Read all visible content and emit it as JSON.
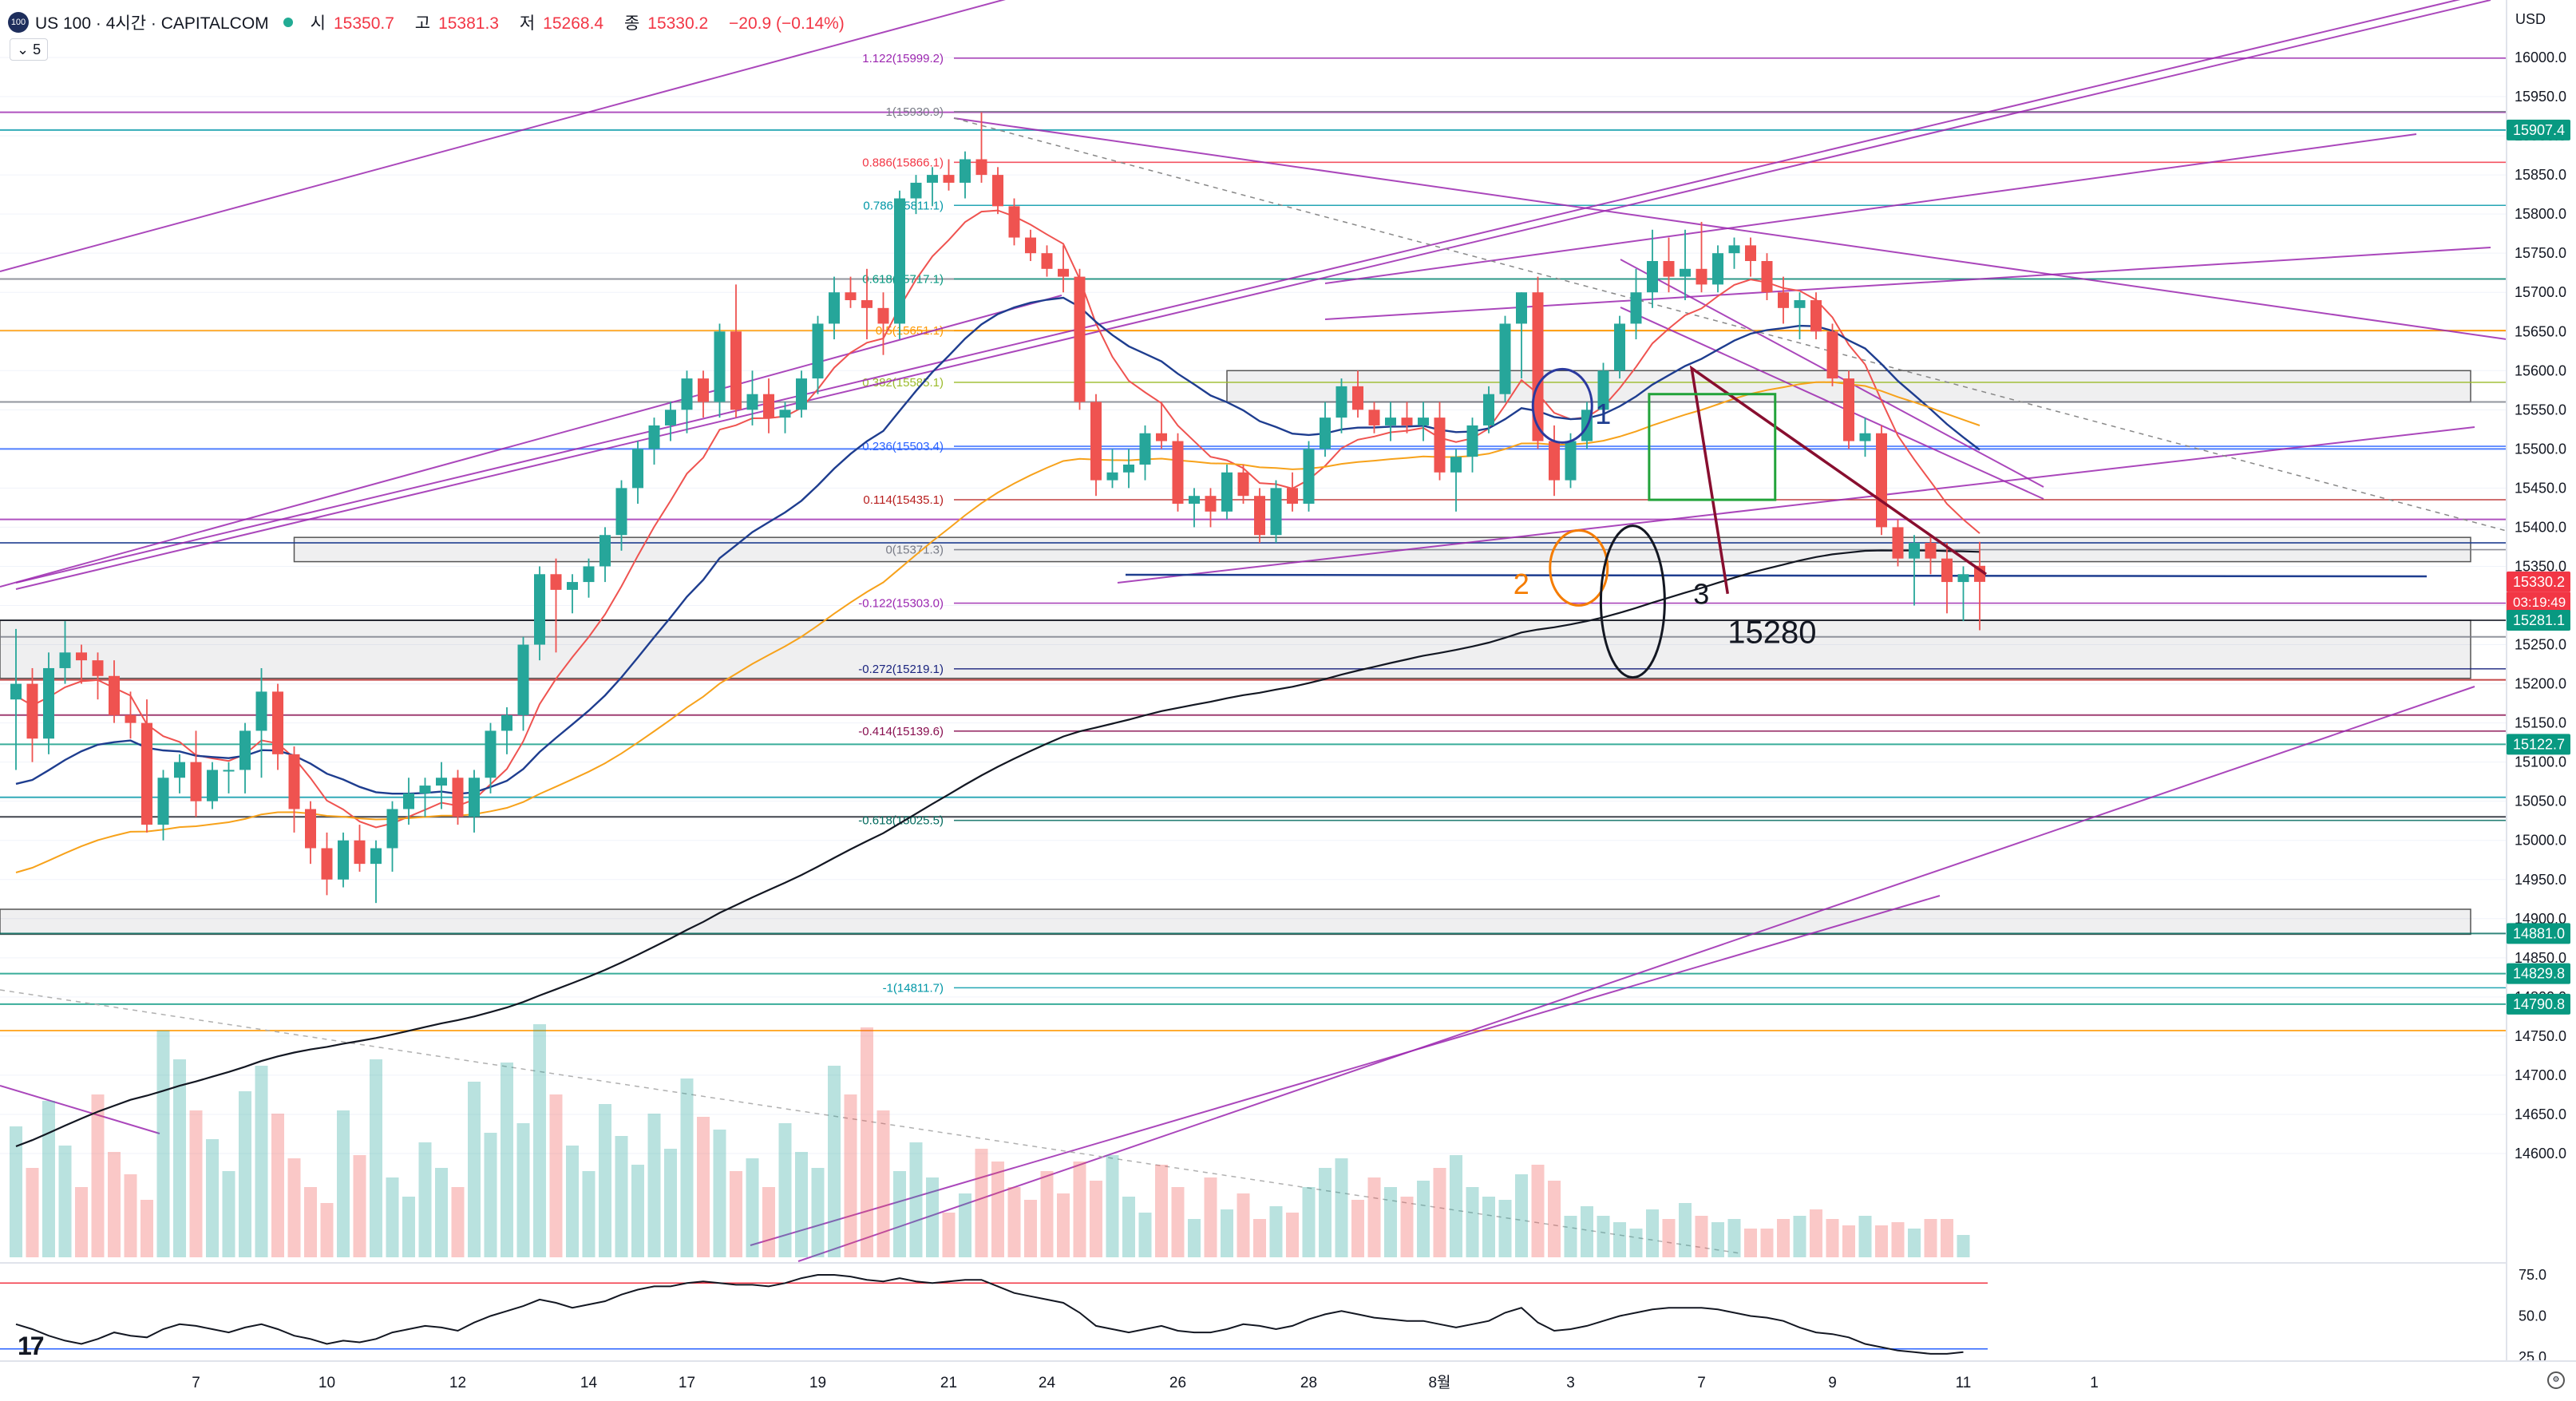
{
  "header": {
    "symbol": "US 100 · 4시간 · CAPITALCOM",
    "logo_text": "100",
    "open_label": "시",
    "open_value": "15350.7",
    "high_label": "고",
    "high_value": "15381.3",
    "low_label": "저",
    "low_value": "15268.4",
    "close_label": "종",
    "close_value": "15330.2",
    "change": "−20.9 (−0.14%)",
    "interval_toggle": "⌄ 5",
    "currency": "USD"
  },
  "colors": {
    "up": "#26a69a",
    "down": "#ef5350",
    "ema_red": "#ef5350",
    "ema_blue": "#1e3d8f",
    "ema_orange": "#f7a21b",
    "ema_black": "#131722",
    "channel": "#9c27b0",
    "target_box": "#22a33a",
    "projection": "#880e2f"
  },
  "chart_data": {
    "type": "candlestick",
    "title": "",
    "price_axis": {
      "ticks": [
        "16000.0",
        "15950.0",
        "15900.0",
        "15850.0",
        "15800.0",
        "15750.0",
        "15700.0",
        "15650.0",
        "15600.0",
        "15550.0",
        "15500.0",
        "15450.0",
        "15400.0",
        "15350.0",
        "15300.0",
        "15250.0",
        "15200.0",
        "15150.0",
        "15100.0",
        "15050.0",
        "15000.0",
        "14950.0",
        "14900.0",
        "14850.0",
        "14800.0",
        "14750.0",
        "14700.0",
        "14650.0",
        "14600.0"
      ],
      "range": [
        14580,
        16030
      ]
    },
    "time_axis": {
      "labels": [
        "7",
        "10",
        "12",
        "14",
        "17",
        "19",
        "21",
        "24",
        "26",
        "28",
        "8월",
        "3",
        "7",
        "9",
        "11",
        "1"
      ],
      "label_bars": [
        11,
        19,
        27,
        35,
        41,
        49,
        57,
        63,
        71,
        79,
        87,
        95,
        103,
        111,
        119,
        127
      ]
    },
    "price_badges": [
      {
        "value": 15907.4,
        "text": "15907.4",
        "color": "#089981"
      },
      {
        "value": 15330.2,
        "text": "15330.2",
        "color": "#f23645"
      },
      {
        "value": 15281.1,
        "text": "15281.1",
        "color": "#089981"
      },
      {
        "value": 15122.7,
        "text": "15122.7",
        "color": "#089981"
      },
      {
        "value": 14881.0,
        "text": "14881.0",
        "color": "#089981"
      },
      {
        "value": 14829.8,
        "text": "14829.8",
        "color": "#089981"
      },
      {
        "value": 14790.8,
        "text": "14790.8",
        "color": "#089981"
      }
    ],
    "countdown": "03:19:49",
    "fib_levels": [
      {
        "ratio": "1.122",
        "price": 15999.2,
        "color": "#9c27b0"
      },
      {
        "ratio": "1",
        "price": 15930.9,
        "color": "#787b86"
      },
      {
        "ratio": "0.886",
        "price": 15866.1,
        "color": "#f23645"
      },
      {
        "ratio": "0.786",
        "price": 15811.1,
        "color": "#0097a7"
      },
      {
        "ratio": "0.618",
        "price": 15717.1,
        "color": "#089981"
      },
      {
        "ratio": "0.5",
        "price": 15651.1,
        "color": "#ff9800"
      },
      {
        "ratio": "0.382",
        "price": 15585.1,
        "color": "#9bbb2a"
      },
      {
        "ratio": "0.236",
        "price": 15503.4,
        "color": "#2962ff"
      },
      {
        "ratio": "0.114",
        "price": 15435.1,
        "color": "#b71c1c"
      },
      {
        "ratio": "0",
        "price": 15371.3,
        "color": "#787b86"
      },
      {
        "ratio": "-0.122",
        "price": 15303.0,
        "color": "#9c27b0"
      },
      {
        "ratio": "-0.272",
        "price": 15219.1,
        "color": "#1a237e"
      },
      {
        "ratio": "-0.414",
        "price": 15139.6,
        "color": "#880e4f"
      },
      {
        "ratio": "-0.618",
        "price": 15025.5,
        "color": "#00695c"
      },
      {
        "ratio": "-1",
        "price": 14811.7,
        "color": "#0097a7"
      }
    ],
    "horizontal_lines": [
      15907.4,
      15930.0,
      15717.1,
      15651.1,
      15560.0,
      15500.0,
      15410.0,
      15380.0,
      15281.1,
      15260.0,
      15205.0,
      15160.0,
      15122.7,
      15055.0,
      15030.0,
      14881.0,
      14829.8,
      14790.8,
      14757.0
    ],
    "zones": [
      {
        "from_bar": 74,
        "to_bar": 150,
        "low": 15560,
        "high": 15600
      },
      {
        "from_bar": 17,
        "to_bar": 150,
        "low": 15356,
        "high": 15387
      },
      {
        "from_bar": -2,
        "to_bar": 150,
        "low": 15207,
        "high": 15281
      },
      {
        "from_bar": -2,
        "to_bar": 150,
        "low": 14880,
        "high": 14912
      }
    ],
    "annotations": [
      {
        "text": "1",
        "color": "#1e3d8f",
        "bar": 96.5,
        "price": 15532
      },
      {
        "text": "2",
        "color": "#f57c00",
        "bar": 91.5,
        "price": 15315
      },
      {
        "text": "3",
        "color": "#131722",
        "bar": 102.5,
        "price": 15302
      },
      {
        "text": "15280",
        "color": "#131722",
        "bar": 104.6,
        "price": 15252
      }
    ],
    "candles": [
      [
        15180,
        15270,
        15090,
        15200
      ],
      [
        15200,
        15220,
        15100,
        15130
      ],
      [
        15130,
        15240,
        15110,
        15220
      ],
      [
        15220,
        15280,
        15200,
        15240
      ],
      [
        15240,
        15250,
        15200,
        15230
      ],
      [
        15230,
        15240,
        15180,
        15210
      ],
      [
        15210,
        15230,
        15150,
        15160
      ],
      [
        15160,
        15190,
        15130,
        15150
      ],
      [
        15150,
        15180,
        15010,
        15020
      ],
      [
        15020,
        15090,
        15000,
        15080
      ],
      [
        15080,
        15110,
        15060,
        15100
      ],
      [
        15100,
        15140,
        15030,
        15050
      ],
      [
        15050,
        15100,
        15040,
        15090
      ],
      [
        15090,
        15100,
        15060,
        15090
      ],
      [
        15090,
        15150,
        15060,
        15140
      ],
      [
        15140,
        15220,
        15080,
        15190
      ],
      [
        15190,
        15200,
        15090,
        15110
      ],
      [
        15110,
        15120,
        15010,
        15040
      ],
      [
        15040,
        15050,
        14970,
        14990
      ],
      [
        14990,
        15010,
        14930,
        14950
      ],
      [
        14950,
        15010,
        14940,
        15000
      ],
      [
        15000,
        15020,
        14960,
        14970
      ],
      [
        14970,
        15000,
        14920,
        14990
      ],
      [
        14990,
        15050,
        14960,
        15040
      ],
      [
        15040,
        15080,
        15020,
        15060
      ],
      [
        15060,
        15080,
        15030,
        15070
      ],
      [
        15070,
        15100,
        15040,
        15080
      ],
      [
        15080,
        15090,
        15020,
        15030
      ],
      [
        15030,
        15090,
        15010,
        15080
      ],
      [
        15080,
        15150,
        15060,
        15140
      ],
      [
        15140,
        15170,
        15110,
        15160
      ],
      [
        15160,
        15260,
        15140,
        15250
      ],
      [
        15250,
        15350,
        15230,
        15340
      ],
      [
        15340,
        15360,
        15240,
        15320
      ],
      [
        15320,
        15340,
        15290,
        15330
      ],
      [
        15330,
        15360,
        15310,
        15350
      ],
      [
        15350,
        15400,
        15330,
        15390
      ],
      [
        15390,
        15460,
        15370,
        15450
      ],
      [
        15450,
        15510,
        15430,
        15500
      ],
      [
        15500,
        15540,
        15480,
        15530
      ],
      [
        15530,
        15560,
        15510,
        15550
      ],
      [
        15550,
        15600,
        15520,
        15590
      ],
      [
        15590,
        15600,
        15540,
        15560
      ],
      [
        15560,
        15660,
        15540,
        15650
      ],
      [
        15650,
        15710,
        15540,
        15550
      ],
      [
        15550,
        15600,
        15530,
        15570
      ],
      [
        15570,
        15590,
        15520,
        15540
      ],
      [
        15540,
        15560,
        15520,
        15550
      ],
      [
        15550,
        15600,
        15540,
        15590
      ],
      [
        15590,
        15670,
        15570,
        15660
      ],
      [
        15660,
        15720,
        15640,
        15700
      ],
      [
        15700,
        15720,
        15680,
        15690
      ],
      [
        15690,
        15730,
        15640,
        15680
      ],
      [
        15680,
        15700,
        15620,
        15660
      ],
      [
        15660,
        15830,
        15640,
        15820
      ],
      [
        15820,
        15850,
        15800,
        15840
      ],
      [
        15840,
        15860,
        15810,
        15850
      ],
      [
        15850,
        15870,
        15830,
        15840
      ],
      [
        15840,
        15880,
        15820,
        15870
      ],
      [
        15870,
        15930,
        15840,
        15850
      ],
      [
        15850,
        15860,
        15800,
        15810
      ],
      [
        15810,
        15820,
        15760,
        15770
      ],
      [
        15770,
        15780,
        15740,
        15750
      ],
      [
        15750,
        15760,
        15720,
        15730
      ],
      [
        15730,
        15760,
        15700,
        15720
      ],
      [
        15720,
        15730,
        15550,
        15560
      ],
      [
        15560,
        15570,
        15440,
        15460
      ],
      [
        15460,
        15500,
        15450,
        15470
      ],
      [
        15470,
        15500,
        15450,
        15480
      ],
      [
        15480,
        15530,
        15460,
        15520
      ],
      [
        15520,
        15560,
        15500,
        15510
      ],
      [
        15510,
        15520,
        15420,
        15430
      ],
      [
        15430,
        15450,
        15400,
        15440
      ],
      [
        15440,
        15450,
        15400,
        15420
      ],
      [
        15420,
        15480,
        15410,
        15470
      ],
      [
        15470,
        15480,
        15430,
        15440
      ],
      [
        15440,
        15450,
        15380,
        15390
      ],
      [
        15390,
        15460,
        15380,
        15450
      ],
      [
        15450,
        15470,
        15420,
        15430
      ],
      [
        15430,
        15510,
        15420,
        15500
      ],
      [
        15500,
        15560,
        15490,
        15540
      ],
      [
        15540,
        15590,
        15520,
        15580
      ],
      [
        15580,
        15600,
        15540,
        15550
      ],
      [
        15550,
        15560,
        15520,
        15530
      ],
      [
        15530,
        15560,
        15510,
        15540
      ],
      [
        15540,
        15560,
        15520,
        15530
      ],
      [
        15530,
        15560,
        15510,
        15540
      ],
      [
        15540,
        15560,
        15460,
        15470
      ],
      [
        15470,
        15500,
        15420,
        15490
      ],
      [
        15490,
        15540,
        15470,
        15530
      ],
      [
        15530,
        15580,
        15520,
        15570
      ],
      [
        15570,
        15670,
        15560,
        15660
      ],
      [
        15660,
        15700,
        15590,
        15700
      ],
      [
        15700,
        15720,
        15500,
        15510
      ],
      [
        15510,
        15530,
        15440,
        15460
      ],
      [
        15460,
        15520,
        15450,
        15510
      ],
      [
        15510,
        15560,
        15500,
        15550
      ],
      [
        15550,
        15610,
        15540,
        15600
      ],
      [
        15600,
        15670,
        15590,
        15660
      ],
      [
        15660,
        15730,
        15640,
        15700
      ],
      [
        15700,
        15780,
        15680,
        15740
      ],
      [
        15740,
        15770,
        15700,
        15720
      ],
      [
        15720,
        15780,
        15690,
        15730
      ],
      [
        15730,
        15790,
        15700,
        15710
      ],
      [
        15710,
        15760,
        15700,
        15750
      ],
      [
        15750,
        15770,
        15730,
        15760
      ],
      [
        15760,
        15770,
        15720,
        15740
      ],
      [
        15740,
        15750,
        15690,
        15700
      ],
      [
        15700,
        15720,
        15660,
        15680
      ],
      [
        15680,
        15700,
        15640,
        15690
      ],
      [
        15690,
        15700,
        15640,
        15650
      ],
      [
        15650,
        15660,
        15580,
        15590
      ],
      [
        15590,
        15600,
        15500,
        15510
      ],
      [
        15510,
        15540,
        15490,
        15520
      ],
      [
        15520,
        15530,
        15390,
        15400
      ],
      [
        15400,
        15410,
        15350,
        15360
      ],
      [
        15360,
        15390,
        15300,
        15380
      ],
      [
        15380,
        15390,
        15340,
        15360
      ],
      [
        15360,
        15380,
        15290,
        15330
      ],
      [
        15330,
        15350,
        15280,
        15340
      ],
      [
        15350.7,
        15381.3,
        15268.4,
        15330.2
      ]
    ],
    "volume": [
      0.41,
      0.28,
      0.49,
      0.35,
      0.22,
      0.51,
      0.33,
      0.26,
      0.18,
      0.71,
      0.62,
      0.46,
      0.37,
      0.27,
      0.52,
      0.6,
      0.45,
      0.31,
      0.22,
      0.17,
      0.46,
      0.32,
      0.62,
      0.25,
      0.19,
      0.36,
      0.28,
      0.22,
      0.55,
      0.39,
      0.61,
      0.42,
      0.73,
      0.51,
      0.35,
      0.27,
      0.48,
      0.38,
      0.29,
      0.45,
      0.34,
      0.56,
      0.44,
      0.4,
      0.27,
      0.31,
      0.22,
      0.42,
      0.33,
      0.28,
      0.6,
      0.51,
      0.72,
      0.46,
      0.27,
      0.36,
      0.25,
      0.14,
      0.2,
      0.34,
      0.3,
      0.22,
      0.18,
      0.27,
      0.2,
      0.3,
      0.24,
      0.32,
      0.19,
      0.14,
      0.29,
      0.22,
      0.12,
      0.25,
      0.15,
      0.2,
      0.12,
      0.16,
      0.14,
      0.22,
      0.28,
      0.31,
      0.18,
      0.25,
      0.22,
      0.19,
      0.24,
      0.28,
      0.32,
      0.22,
      0.19,
      0.18,
      0.26,
      0.29,
      0.24,
      0.13,
      0.16,
      0.13,
      0.11,
      0.09,
      0.15,
      0.12,
      0.17,
      0.13,
      0.11,
      0.12,
      0.09,
      0.09,
      0.12,
      0.13,
      0.15,
      0.12,
      0.1,
      0.13,
      0.1,
      0.11,
      0.09,
      0.12,
      0.12,
      0.07
    ],
    "oscillator": {
      "ticks": [
        "75.0",
        "50.0",
        "25.0"
      ],
      "levels": [
        70,
        30
      ],
      "values": [
        45,
        42,
        38,
        35,
        33,
        36,
        40,
        38,
        37,
        42,
        45,
        44,
        42,
        40,
        43,
        45,
        42,
        38,
        36,
        33,
        35,
        34,
        36,
        40,
        42,
        44,
        43,
        41,
        46,
        50,
        53,
        56,
        60,
        58,
        55,
        57,
        59,
        63,
        66,
        68,
        68,
        70,
        71,
        70,
        69,
        69,
        68,
        70,
        73,
        75,
        75,
        74,
        72,
        71,
        73,
        71,
        70,
        71,
        72,
        72,
        68,
        64,
        62,
        60,
        58,
        52,
        44,
        42,
        40,
        42,
        44,
        41,
        40,
        40,
        42,
        45,
        44,
        42,
        44,
        48,
        51,
        53,
        51,
        49,
        48,
        47,
        47,
        45,
        43,
        45,
        47,
        52,
        55,
        46,
        41,
        42,
        44,
        47,
        50,
        52,
        54,
        55,
        55,
        55,
        54,
        52,
        50,
        49,
        47,
        43,
        40,
        39,
        37,
        33,
        31,
        29,
        28,
        27,
        27,
        28
      ]
    }
  }
}
